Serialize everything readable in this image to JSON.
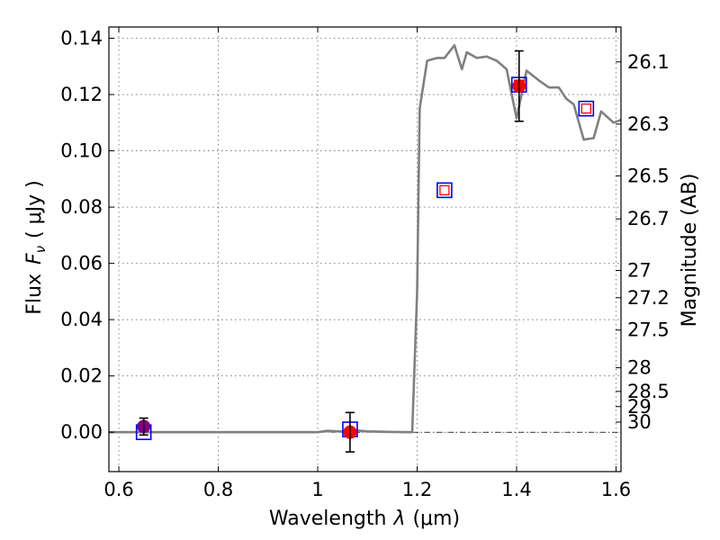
{
  "chart_data": {
    "type": "scatter",
    "xlabel": "Wavelength",
    "xlabel_symbol": "λ",
    "xlabel_unit": "(μm)",
    "ylabel": "Flux",
    "ylabel_symbol": "F",
    "ylabel_subscript": "ν",
    "ylabel_unit": "( μJy )",
    "ylabel_right": "Magnitude (AB)",
    "xlim": [
      0.58,
      1.61
    ],
    "ylim": [
      -0.014,
      0.144
    ],
    "grid": true,
    "x_ticks": [
      0.6,
      0.8,
      1.0,
      1.2,
      1.4,
      1.6
    ],
    "x_tick_labels": [
      "0.6",
      "0.8",
      "1",
      "1.2",
      "1.4",
      "1.6"
    ],
    "y_ticks": [
      0.0,
      0.02,
      0.04,
      0.06,
      0.08,
      0.1,
      0.12,
      0.14
    ],
    "y_tick_labels": [
      "0.00",
      "0.02",
      "0.04",
      "0.06",
      "0.08",
      "0.10",
      "0.12",
      "0.14"
    ],
    "right_axis_ticks": [
      {
        "label": "26.1",
        "flux": 0.1316
      },
      {
        "label": "26.3",
        "flux": 0.1095
      },
      {
        "label": "26.5",
        "flux": 0.0911
      },
      {
        "label": "26.7",
        "flux": 0.0758
      },
      {
        "label": "27",
        "flux": 0.0575
      },
      {
        "label": "27.2",
        "flux": 0.0478
      },
      {
        "label": "27.5",
        "flux": 0.0363
      },
      {
        "label": "28",
        "flux": 0.0229
      },
      {
        "label": "28.5",
        "flux": 0.0145
      },
      {
        "label": "29",
        "flux": 0.0091
      },
      {
        "label": "30",
        "flux": 0.0036
      }
    ],
    "model_sed": {
      "color": "#808080",
      "x": [
        0.58,
        1.0,
        1.02,
        1.05,
        1.08,
        1.1,
        1.15,
        1.19,
        1.2,
        1.205,
        1.22,
        1.24,
        1.255,
        1.275,
        1.29,
        1.3,
        1.32,
        1.34,
        1.36,
        1.38,
        1.4,
        1.42,
        1.445,
        1.465,
        1.485,
        1.5,
        1.515,
        1.535,
        1.555,
        1.57,
        1.595,
        1.61
      ],
      "y": [
        0.0,
        0.0,
        0.0005,
        0.0002,
        0.0006,
        0.0003,
        0.0001,
        0.0,
        0.05,
        0.115,
        0.132,
        0.133,
        0.133,
        0.1375,
        0.129,
        0.135,
        0.133,
        0.1335,
        0.132,
        0.129,
        0.1115,
        0.1285,
        0.125,
        0.1225,
        0.1225,
        0.1185,
        0.1165,
        0.104,
        0.1045,
        0.114,
        0.11,
        0.111
      ]
    },
    "detections": {
      "marker_color": "#ff0000",
      "errorbar_color": "#000000",
      "points": [
        {
          "x": 0.65,
          "y": 0.002,
          "err": 0.003,
          "overlap_color": "#800080"
        },
        {
          "x": 1.065,
          "y": 0.0,
          "err": 0.007
        },
        {
          "x": 1.405,
          "y": 0.123,
          "err": 0.0125
        }
      ]
    },
    "model_photometry": {
      "outer_color": "#0000ff",
      "inner_color": "#ff0000",
      "points": [
        {
          "x": 0.65,
          "y": 0.0,
          "inner": false
        },
        {
          "x": 1.065,
          "y": 0.001,
          "inner": false
        },
        {
          "x": 1.255,
          "y": 0.086,
          "inner": true
        },
        {
          "x": 1.405,
          "y": 0.1235,
          "inner": true
        },
        {
          "x": 1.54,
          "y": 0.115,
          "inner": true
        }
      ]
    },
    "zero_line": {
      "y": 0.0,
      "color": "#000000"
    }
  }
}
